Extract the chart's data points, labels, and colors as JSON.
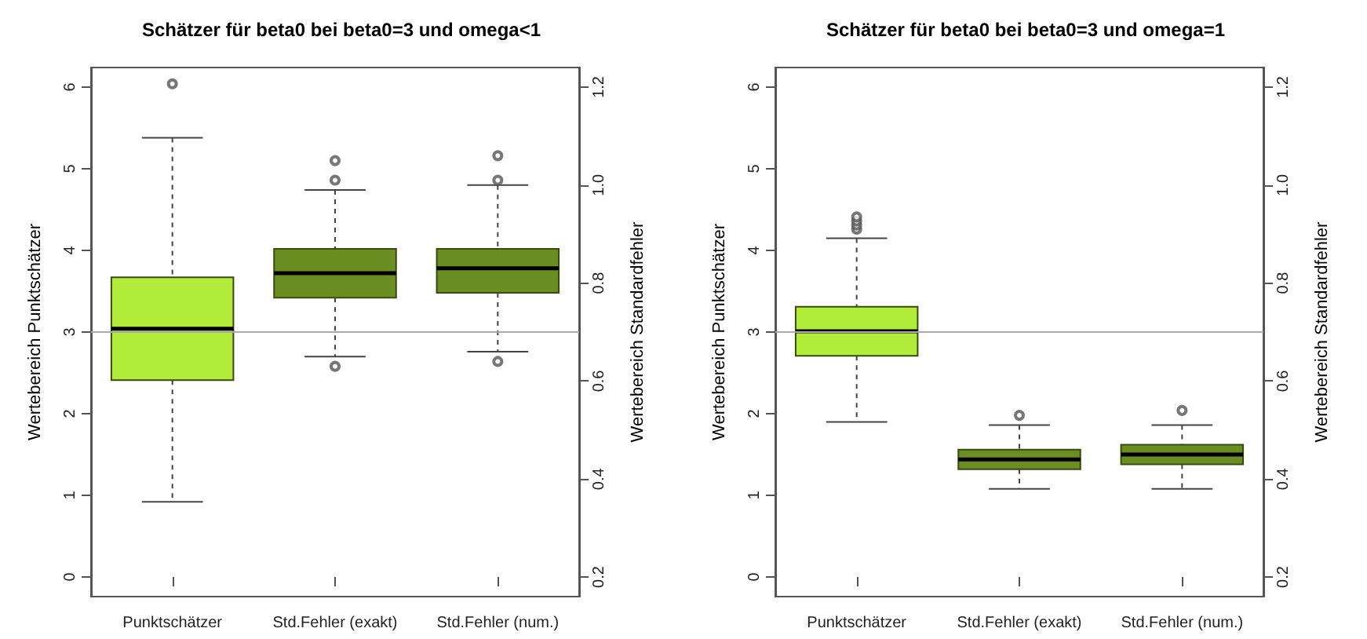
{
  "chart_data": [
    {
      "type": "box",
      "title": "Schätzer für beta0 bei beta0=3 und omega<1",
      "ylabel": "Wertebereich Punktschätzer",
      "y2label": "Wertebereich Standardfehler",
      "categories": [
        "Punktschätzer",
        "Std.Fehler (exakt)",
        "Std.Fehler (num.)"
      ],
      "ylim": [
        -0.24,
        6.24
      ],
      "yticks": [
        0,
        1,
        2,
        3,
        4,
        5,
        6
      ],
      "y2lim": [
        0.16,
        1.24
      ],
      "y2ticks": [
        0.2,
        0.4,
        0.6,
        0.8,
        {
          "value": 1,
          "label": "1.0"
        },
        1.2
      ],
      "ref_lines": [
        {
          "axis": "y",
          "value": 3,
          "color": "#aaaaaa"
        }
      ],
      "series": [
        {
          "color": "#b2ec3a",
          "boxes": [
            {
              "low": 0.92,
              "q1": 2.41,
              "median": 3.04,
              "q3": 3.67,
              "high": 5.38,
              "outliers": [
                6.04
              ]
            },
            null,
            null
          ]
        },
        {
          "color": "#6b8e23",
          "axis": "y2",
          "boxes": [
            null,
            {
              "low": 0.65,
              "q1": 0.77,
              "median": 0.82,
              "q3": 0.87,
              "high": 0.99,
              "outliers": [
                1.05,
                1.01,
                0.63
              ]
            },
            {
              "low": 0.66,
              "q1": 0.78,
              "median": 0.83,
              "q3": 0.87,
              "high": 1.0,
              "outliers": [
                1.06,
                1.01,
                0.64
              ]
            }
          ]
        }
      ]
    },
    {
      "type": "box",
      "title": "Schätzer für beta0 bei beta0=3 und omega=1",
      "ylabel": "Wertebereich Punktschätzer",
      "y2label": "Wertebereich Standardfehler",
      "categories": [
        "Punktschätzer",
        "Std.Fehler (exakt)",
        "Std.Fehler (num.)"
      ],
      "ylim": [
        -0.24,
        6.24
      ],
      "yticks": [
        0,
        1,
        2,
        3,
        4,
        5,
        6
      ],
      "y2lim": [
        0.16,
        1.24
      ],
      "y2ticks": [
        0.2,
        0.4,
        0.6,
        0.8,
        {
          "value": 1,
          "label": "1.0"
        },
        1.2
      ],
      "ref_lines": [
        {
          "axis": "y",
          "value": 3,
          "color": "#aaaaaa"
        }
      ],
      "series": [
        {
          "color": "#b2ec3a",
          "boxes": [
            {
              "low": 1.9,
              "q1": 2.71,
              "median": 3.01,
              "q3": 3.31,
              "high": 4.15,
              "outliers": [
                4.26,
                4.31,
                4.36,
                4.41
              ]
            },
            null,
            null
          ]
        },
        {
          "color": "#6b8e23",
          "axis": "y2",
          "boxes": [
            null,
            {
              "low": 0.38,
              "q1": 0.42,
              "median": 0.44,
              "q3": 0.46,
              "high": 0.51,
              "outliers": [
                0.53
              ]
            },
            {
              "low": 0.38,
              "q1": 0.43,
              "median": 0.45,
              "q3": 0.47,
              "high": 0.51,
              "outliers": [
                0.54
              ]
            }
          ]
        }
      ]
    }
  ]
}
